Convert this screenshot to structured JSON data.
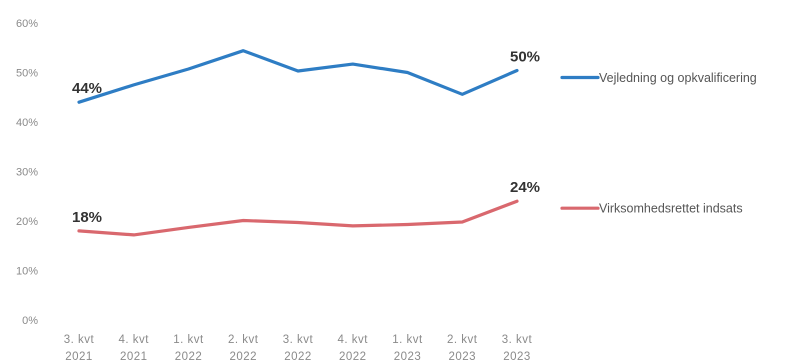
{
  "chart_data": {
    "type": "line",
    "categories": [
      [
        "3. kvt",
        "2021"
      ],
      [
        "4. kvt",
        "2021"
      ],
      [
        "1. kvt",
        "2022"
      ],
      [
        "2. kvt",
        "2022"
      ],
      [
        "3. kvt",
        "2022"
      ],
      [
        "4. kvt",
        "2022"
      ],
      [
        "1. kvt",
        "2023"
      ],
      [
        "2. kvt",
        "2023"
      ],
      [
        "3. kvt",
        "2023"
      ]
    ],
    "ylim": [
      0,
      60
    ],
    "yticks": [
      "0%",
      "10%",
      "20%",
      "30%",
      "40%",
      "50%",
      "60%"
    ],
    "grid": false,
    "legend_position": "right",
    "series": [
      {
        "name": "Vejledning og opkvalificering",
        "color": "#2e7dc4",
        "values": [
          44,
          47.5,
          50.7,
          54.4,
          50.3,
          51.7,
          50,
          45.6,
          50.4
        ],
        "data_labels": [
          {
            "index": 0,
            "text": "44%"
          },
          {
            "index": 8,
            "text": "50%"
          }
        ]
      },
      {
        "name": "Virksomhedsrettet indsats",
        "color": "#d9686e",
        "values": [
          18,
          17.2,
          18.7,
          20.1,
          19.7,
          19,
          19.3,
          19.8,
          24
        ],
        "data_labels": [
          {
            "index": 0,
            "text": "18%"
          },
          {
            "index": 8,
            "text": "24%"
          }
        ]
      }
    ]
  }
}
